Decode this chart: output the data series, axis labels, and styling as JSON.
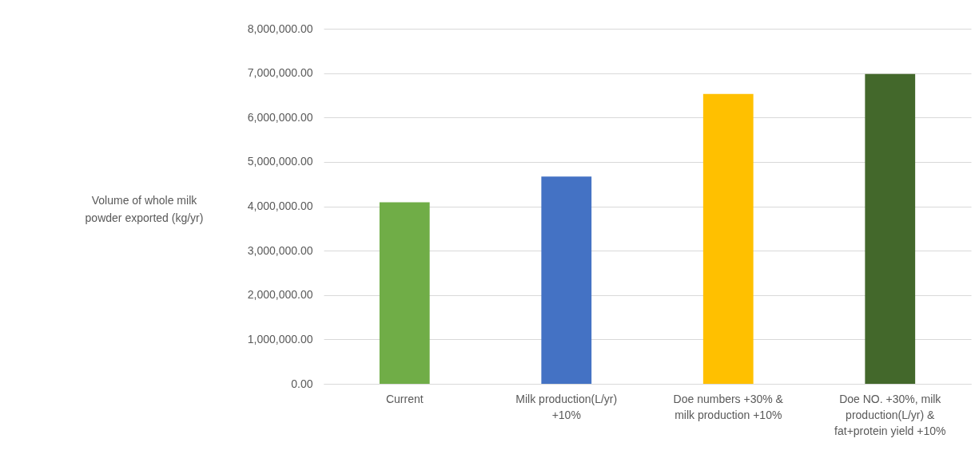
{
  "chart_data": {
    "type": "bar",
    "ylabel": "Volume of whole milk powder exported (kg/yr)",
    "categories": [
      "Current",
      "Milk production(L/yr) +10%",
      "Doe numbers +30% & milk production +10%",
      "Doe NO. +30%, milk production(L/yr) & fat+protein yield +10%"
    ],
    "values": [
      4090000,
      4670000,
      6530000,
      6980000
    ],
    "colors": [
      "#70ad47",
      "#4472c4",
      "#ffc000",
      "#43682b"
    ],
    "ylim": [
      0,
      8000000
    ],
    "yticks": [
      {
        "value": 0,
        "label": "0.00"
      },
      {
        "value": 1000000,
        "label": "1,000,000.00"
      },
      {
        "value": 2000000,
        "label": "2,000,000.00"
      },
      {
        "value": 3000000,
        "label": "3,000,000.00"
      },
      {
        "value": 4000000,
        "label": "4,000,000.00"
      },
      {
        "value": 5000000,
        "label": "5,000,000.00"
      },
      {
        "value": 6000000,
        "label": "6,000,000.00"
      },
      {
        "value": 7000000,
        "label": "7,000,000.00"
      },
      {
        "value": 8000000,
        "label": "8,000,000.00"
      }
    ],
    "grid": "y"
  }
}
